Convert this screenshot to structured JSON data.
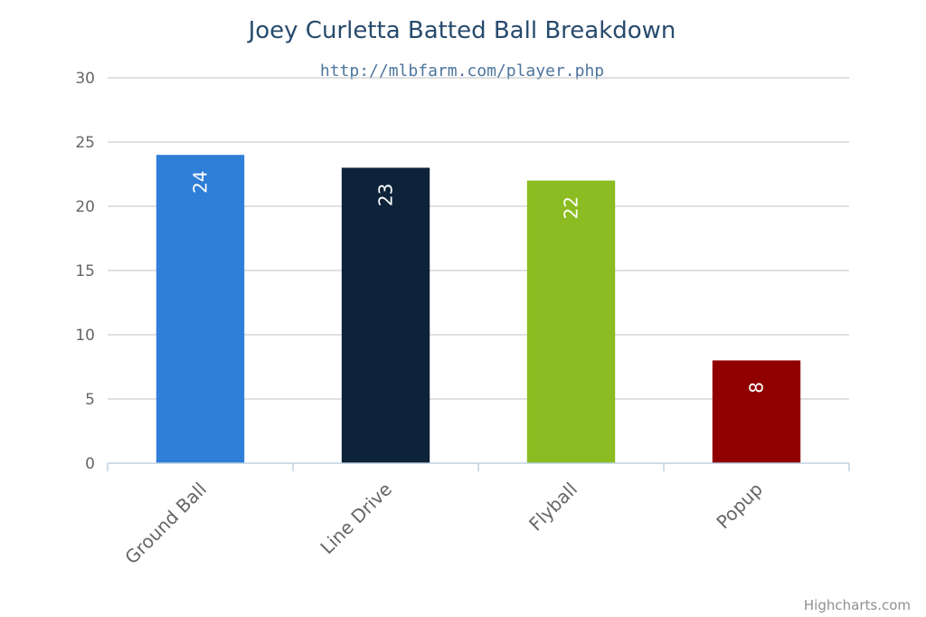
{
  "chart_data": {
    "type": "bar",
    "title": "Joey Curletta Batted Ball Breakdown",
    "subtitle": "http://mlbfarm.com/player.php",
    "categories": [
      "Ground Ball",
      "Line Drive",
      "Flyball",
      "Popup"
    ],
    "values": [
      24,
      23,
      22,
      8
    ],
    "colors": [
      "#2f7ed8",
      "#0d233a",
      "#8bbc21",
      "#910000"
    ],
    "ylim": [
      0,
      30
    ],
    "yticks": [
      0,
      5,
      10,
      15,
      20,
      25,
      30
    ],
    "xlabel": "",
    "ylabel": "",
    "grid": true,
    "legend": "none",
    "data_labels": "inside-top-rotated"
  },
  "credits": "Highcharts.com"
}
